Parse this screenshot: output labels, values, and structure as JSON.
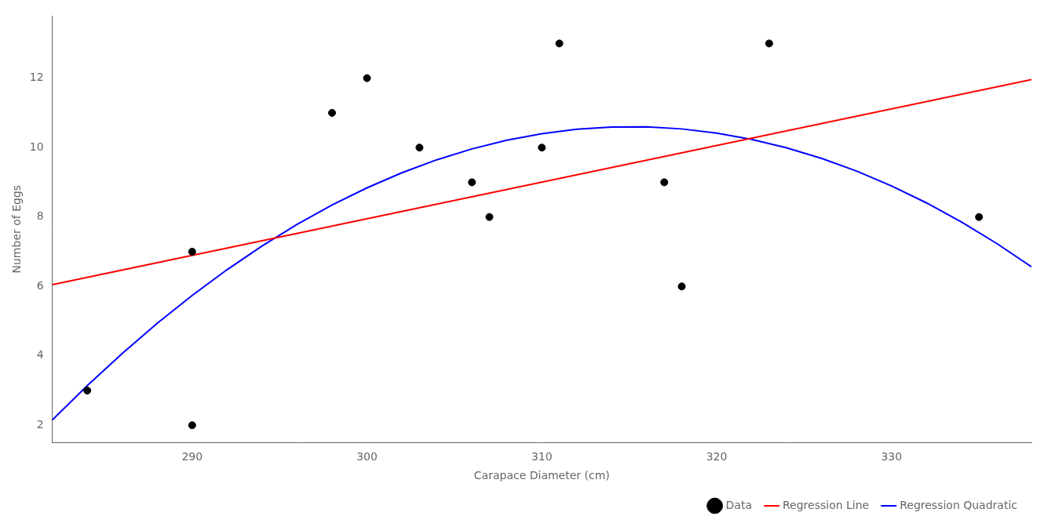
{
  "chart_data": {
    "type": "scatter",
    "xlabel": "Carapace Diameter (cm)",
    "ylabel": "Number of Eggs",
    "xlim": [
      282,
      338
    ],
    "ylim": [
      1.5,
      13.8
    ],
    "xticks": [
      290,
      300,
      310,
      320,
      330
    ],
    "yticks": [
      2,
      4,
      6,
      8,
      10,
      12
    ],
    "grid": false,
    "legend": "lower right",
    "series": [
      {
        "name": "Data",
        "type": "scatter",
        "color": "#000000",
        "marker": "circle",
        "x": [
          284,
          290,
          290,
          298,
          300,
          303,
          306,
          307,
          310,
          311,
          317,
          318,
          323,
          335
        ],
        "values": [
          3,
          7,
          2,
          11,
          12,
          10,
          9,
          8,
          10,
          13,
          9,
          6,
          13,
          8
        ]
      },
      {
        "name": "Regression Line",
        "type": "line",
        "color": "#FF0000",
        "line_style": "solid",
        "x": [
          282,
          338
        ],
        "values": [
          6.049,
          11.961
        ]
      },
      {
        "name": "Regression Quadratic",
        "type": "line",
        "color": "#0000FF",
        "line_style": "solid",
        "x": [
          282,
          284,
          286,
          288,
          290,
          292,
          294,
          296,
          298,
          300,
          302,
          304,
          306,
          308,
          310,
          312,
          314,
          316,
          318,
          320,
          322,
          324,
          326,
          328,
          330,
          332,
          334,
          336,
          338
        ],
        "values": [
          2.152,
          3.141,
          4.07,
          4.936,
          5.741,
          6.484,
          7.166,
          7.786,
          8.345,
          8.841,
          9.276,
          9.65,
          9.962,
          10.212,
          10.4,
          10.527,
          10.592,
          10.596,
          10.538,
          10.418,
          10.237,
          9.994,
          9.689,
          9.323,
          8.895,
          8.406,
          7.855,
          7.242,
          6.567
        ]
      }
    ]
  }
}
